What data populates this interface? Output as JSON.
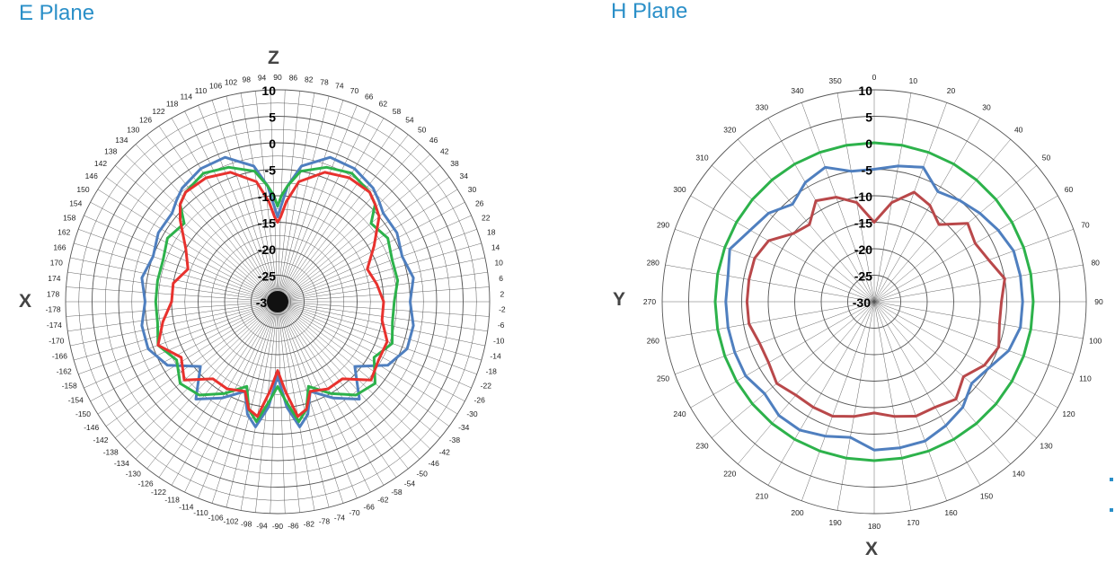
{
  "panels": {
    "e_plane": {
      "title": "E Plane",
      "axis_top": "Z",
      "axis_left": "X"
    },
    "h_plane": {
      "title": "H Plane",
      "axis_left": "Y",
      "axis_bottom": "X"
    }
  },
  "colors": {
    "title": "#2a8fc8",
    "blue": "#4f7fbf",
    "green": "#2db24b",
    "red_e": "#e8322e",
    "red_h": "#b9484a",
    "grid": "#444444"
  },
  "chart_data": [
    {
      "type": "polar-line",
      "plane": "E Plane",
      "title": "E Plane",
      "angle_unit": "deg",
      "angle_orientation": "0 at right (X), 90 at top (Z), counterclockwise; lower half labeled -2 to -178",
      "radial_range": [
        -30,
        10
      ],
      "radial_ticks": [
        10,
        5,
        0,
        -5,
        -10,
        -15,
        -20,
        -25,
        -30
      ],
      "radial_tick_labels": [
        "10",
        "5",
        "0",
        "-5",
        "-10",
        "-15",
        "-20",
        "-25",
        "-30"
      ],
      "angle_tick_labels": [
        "90",
        "86",
        "82",
        "78",
        "74",
        "70",
        "66",
        "62",
        "58",
        "54",
        "50",
        "46",
        "42",
        "38",
        "34",
        "30",
        "26",
        "22",
        "18",
        "14",
        "10",
        "6",
        "2",
        "-2",
        "-6",
        "-10",
        "-14",
        "-18",
        "-22",
        "-26",
        "-30",
        "-34",
        "-38",
        "-42",
        "-46",
        "-50",
        "-54",
        "-58",
        "-62",
        "-66",
        "-70",
        "-74",
        "-78",
        "-82",
        "-86",
        "-90",
        "-94",
        "-98",
        "-102",
        "-106",
        "-110",
        "-114",
        "-118",
        "-122",
        "-126",
        "-130",
        "-134",
        "-138",
        "-142",
        "-146",
        "-150",
        "-154",
        "-158",
        "-162",
        "-166",
        "-170",
        "-174",
        "-178",
        "178",
        "174",
        "170",
        "166",
        "162",
        "158",
        "154",
        "150",
        "146",
        "142",
        "138",
        "134",
        "130",
        "126",
        "122",
        "118",
        "114",
        "110",
        "106",
        "102",
        "98",
        "94"
      ],
      "grid": true,
      "series": [
        {
          "color": "#4f7fbf",
          "angles": [
            0,
            10,
            20,
            30,
            40,
            45,
            50,
            60,
            70,
            80,
            85,
            88,
            90,
            92,
            95,
            100,
            110,
            120,
            130,
            135,
            140,
            150,
            160,
            170,
            180,
            190,
            200,
            210,
            220,
            230,
            240,
            250,
            255,
            260,
            265,
            270,
            275,
            280,
            285,
            290,
            300,
            310,
            320,
            330,
            340,
            350
          ],
          "values": [
            -5,
            -4,
            -5,
            -4,
            -4,
            -3,
            -2,
            -1,
            -1,
            -4,
            -8,
            -12,
            -14,
            -12,
            -8,
            -4,
            -1,
            -1,
            -2,
            -3,
            -4,
            -4,
            -5,
            -4,
            -5,
            -4,
            -4,
            -6,
            -11,
            -6,
            -9,
            -12,
            -8,
            -6,
            -10,
            -16,
            -10,
            -6,
            -8,
            -12,
            -9,
            -6,
            -11,
            -6,
            -4,
            -4
          ]
        },
        {
          "color": "#2db24b",
          "angles": [
            0,
            10,
            20,
            30,
            40,
            45,
            50,
            60,
            70,
            80,
            85,
            88,
            90,
            92,
            95,
            100,
            110,
            120,
            130,
            135,
            140,
            150,
            160,
            170,
            180,
            190,
            200,
            210,
            220,
            230,
            240,
            250,
            255,
            260,
            265,
            270,
            275,
            280,
            285,
            290,
            300,
            310,
            320,
            330,
            340,
            350
          ],
          "values": [
            -8,
            -7,
            -7,
            -6,
            -7,
            -4,
            -3,
            -2,
            -3,
            -5,
            -8,
            -10,
            -12,
            -10,
            -8,
            -5,
            -3,
            -2,
            -3,
            -4,
            -7,
            -6,
            -7,
            -7,
            -7,
            -7,
            -6,
            -8,
            -6,
            -7,
            -10,
            -13,
            -9,
            -7,
            -11,
            -14,
            -11,
            -7,
            -9,
            -13,
            -10,
            -7,
            -6,
            -9,
            -7,
            -8
          ]
        },
        {
          "color": "#e8322e",
          "angles": [
            0,
            10,
            20,
            30,
            40,
            45,
            50,
            60,
            70,
            80,
            85,
            88,
            90,
            92,
            95,
            100,
            110,
            120,
            130,
            135,
            140,
            150,
            160,
            170,
            180,
            190,
            200,
            210,
            220,
            230,
            240,
            250,
            255,
            260,
            265,
            270,
            275,
            280,
            285,
            290,
            300,
            310,
            320,
            330,
            340,
            350
          ],
          "values": [
            -10,
            -11,
            -12,
            -9,
            -5,
            -4,
            -3,
            -3,
            -4,
            -7,
            -11,
            -14,
            -15,
            -14,
            -11,
            -7,
            -4,
            -3,
            -3,
            -4,
            -6,
            -10,
            -12,
            -10,
            -10,
            -8,
            -6,
            -9,
            -7,
            -11,
            -11,
            -12,
            -9,
            -8,
            -13,
            -17,
            -13,
            -8,
            -9,
            -12,
            -11,
            -11,
            -7,
            -8,
            -8,
            -10
          ]
        }
      ]
    },
    {
      "type": "polar-line",
      "plane": "H Plane",
      "title": "H Plane",
      "angle_unit": "deg",
      "angle_orientation": "0 at top, clockwise",
      "radial_range": [
        -30,
        10
      ],
      "radial_ticks": [
        10,
        5,
        0,
        -5,
        -10,
        -15,
        -20,
        -25,
        -30
      ],
      "radial_tick_labels": [
        "10",
        "5",
        "0",
        "-5",
        "-10",
        "-15",
        "-20",
        "-25",
        "-30"
      ],
      "angle_tick_labels": [
        "0",
        "10",
        "20",
        "30",
        "40",
        "50",
        "60",
        "70",
        "80",
        "90",
        "100",
        "110",
        "120",
        "130",
        "140",
        "150",
        "160",
        "170",
        "180",
        "190",
        "200",
        "210",
        "220",
        "230",
        "240",
        "250",
        "260",
        "270",
        "280",
        "290",
        "300",
        "310",
        "320",
        "330",
        "340",
        "350"
      ],
      "grid": true,
      "series": [
        {
          "color": "#2db24b",
          "angles": [
            0,
            10,
            20,
            30,
            40,
            50,
            60,
            70,
            80,
            90,
            100,
            110,
            120,
            130,
            140,
            150,
            160,
            170,
            180,
            190,
            200,
            210,
            220,
            230,
            240,
            250,
            260,
            270,
            280,
            290,
            300,
            310,
            320,
            330,
            340,
            350
          ],
          "values": [
            0,
            0,
            0,
            0,
            0,
            0,
            0,
            0,
            0,
            0,
            0,
            0,
            0,
            0,
            0,
            0,
            0,
            0,
            0,
            0,
            0,
            0,
            0,
            0,
            0,
            0,
            0,
            0,
            0,
            0,
            0,
            0,
            0,
            0,
            0,
            0
          ]
        },
        {
          "color": "#4f7fbf",
          "angles": [
            0,
            10,
            20,
            30,
            40,
            50,
            60,
            70,
            80,
            90,
            100,
            110,
            120,
            130,
            140,
            150,
            160,
            170,
            180,
            190,
            200,
            210,
            220,
            230,
            240,
            250,
            260,
            270,
            280,
            290,
            300,
            310,
            320,
            330,
            340,
            350
          ],
          "values": [
            -5,
            -4,
            -3,
            -6,
            -5,
            -4,
            -3,
            -2,
            -2,
            -2,
            -2,
            -3,
            -5,
            -6,
            -4,
            -3,
            -2,
            -2,
            -2,
            -4,
            -3,
            -2,
            -2,
            -3,
            -2,
            -2,
            -2,
            -2,
            -2,
            -1,
            -3,
            -4,
            -6,
            -4,
            -3,
            -5
          ]
        },
        {
          "color": "#b9484a",
          "angles": [
            0,
            10,
            20,
            30,
            40,
            50,
            60,
            70,
            80,
            90,
            100,
            110,
            120,
            130,
            140,
            150,
            160,
            170,
            180,
            190,
            200,
            210,
            220,
            230,
            240,
            250,
            260,
            270,
            280,
            290,
            300,
            310,
            320,
            330,
            340,
            350
          ],
          "values": [
            -15,
            -11,
            -8,
            -9,
            -11,
            -7,
            -8,
            -7,
            -5,
            -6,
            -6,
            -5,
            -6,
            -8,
            -6,
            -7,
            -7,
            -8,
            -9,
            -8,
            -7,
            -7,
            -7,
            -6,
            -7,
            -7,
            -6,
            -6,
            -6,
            -6,
            -7,
            -10,
            -11,
            -8,
            -9,
            -11
          ]
        }
      ]
    }
  ]
}
